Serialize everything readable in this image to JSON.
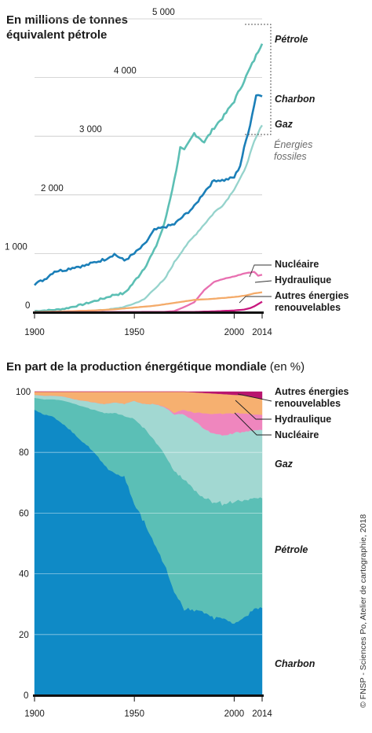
{
  "credit": "© FNSP - Sciences Po, Atelier de cartographie, 2018",
  "chart_data": [
    {
      "type": "line",
      "title": [
        "En millions de tonnes",
        "équivalent pétrole"
      ],
      "ylim": [
        0,
        5000
      ],
      "yticks": [
        "0",
        "1 000",
        "2 000",
        "3 000",
        "4 000",
        "5 000"
      ],
      "ytick_values": [
        0,
        1000,
        2000,
        3000,
        4000,
        5000
      ],
      "xlim": [
        1900,
        2014
      ],
      "xticks": [
        "1900",
        "1950",
        "2000",
        "2014"
      ],
      "xtick_values": [
        1900,
        1950,
        2000,
        2014
      ],
      "grid": true,
      "group_label": [
        "Énergies",
        "fossiles"
      ],
      "series": [
        {
          "name": "Pétrole",
          "color": "#5cbfb4",
          "x": [
            1900,
            1905,
            1910,
            1915,
            1920,
            1925,
            1930,
            1935,
            1940,
            1945,
            1950,
            1955,
            1960,
            1965,
            1970,
            1973,
            1975,
            1980,
            1985,
            1990,
            1995,
            2000,
            2005,
            2010,
            2014
          ],
          "y": [
            20,
            30,
            40,
            60,
            100,
            140,
            190,
            240,
            300,
            320,
            520,
            760,
            1050,
            1500,
            2250,
            2800,
            2750,
            3050,
            2900,
            3150,
            3350,
            3600,
            3950,
            4300,
            4600
          ]
        },
        {
          "name": "Charbon",
          "color": "#1b7fb8",
          "x": [
            1900,
            1905,
            1910,
            1915,
            1920,
            1925,
            1930,
            1935,
            1940,
            1945,
            1950,
            1955,
            1960,
            1965,
            1970,
            1975,
            1980,
            1985,
            1990,
            1995,
            2000,
            2003,
            2005,
            2008,
            2011,
            2014
          ],
          "y": [
            480,
            560,
            700,
            720,
            770,
            790,
            850,
            900,
            990,
            880,
            1000,
            1150,
            1400,
            1450,
            1500,
            1650,
            1800,
            2050,
            2250,
            2250,
            2300,
            2500,
            2800,
            3200,
            3700,
            3700
          ]
        },
        {
          "name": "Gaz",
          "color": "#95d3cc",
          "x": [
            1900,
            1905,
            1910,
            1915,
            1920,
            1925,
            1930,
            1935,
            1940,
            1945,
            1950,
            1955,
            1960,
            1965,
            1970,
            1975,
            1980,
            1985,
            1990,
            1995,
            2000,
            2005,
            2010,
            2014
          ],
          "y": [
            5,
            8,
            10,
            12,
            15,
            20,
            30,
            40,
            60,
            90,
            150,
            220,
            400,
            550,
            850,
            1100,
            1300,
            1500,
            1700,
            1850,
            2100,
            2400,
            2900,
            3200
          ]
        },
        {
          "name": "Nucléaire",
          "color": "#e86fb0",
          "x": [
            1900,
            1960,
            1965,
            1970,
            1975,
            1980,
            1985,
            1990,
            1995,
            2000,
            2005,
            2010,
            2011,
            2012,
            2014
          ],
          "y": [
            0,
            0,
            5,
            20,
            90,
            170,
            380,
            520,
            570,
            610,
            660,
            690,
            660,
            620,
            640
          ]
        },
        {
          "name": "Hydraulique",
          "color": "#f4ab6a",
          "x": [
            1900,
            1910,
            1920,
            1930,
            1940,
            1950,
            1960,
            1970,
            1980,
            1990,
            2000,
            2005,
            2010,
            2014
          ],
          "y": [
            5,
            10,
            20,
            30,
            50,
            80,
            110,
            160,
            210,
            230,
            260,
            280,
            320,
            340
          ]
        },
        {
          "name": "Autres énergies renouvelables",
          "color": "#c8187e",
          "x": [
            1900,
            1980,
            1990,
            2000,
            2005,
            2008,
            2010,
            2012,
            2014
          ],
          "y": [
            0,
            5,
            15,
            30,
            45,
            70,
            100,
            140,
            180
          ]
        }
      ],
      "labels": {
        "petrole": "Pétrole",
        "charbon": "Charbon",
        "gaz": "Gaz",
        "nucleaire": "Nucléaire",
        "hydraulique": "Hydraulique",
        "autres": [
          "Autres énergies",
          "renouvelables"
        ]
      }
    },
    {
      "type": "area",
      "title_bold": "En part de la production énergétique mondiale",
      "title_light": " (en %)",
      "stacked": true,
      "ylim": [
        0,
        100
      ],
      "yticks": [
        "0",
        "20",
        "40",
        "60",
        "80",
        "100"
      ],
      "ytick_values": [
        0,
        20,
        40,
        60,
        80,
        100
      ],
      "xlim": [
        1900,
        2014
      ],
      "xticks": [
        "1900",
        "1950",
        "2000",
        "2014"
      ],
      "xtick_values": [
        1900,
        1950,
        2000,
        2014
      ],
      "grid": true,
      "x": [
        1900,
        1905,
        1910,
        1915,
        1920,
        1925,
        1930,
        1935,
        1940,
        1945,
        1950,
        1955,
        1960,
        1965,
        1970,
        1975,
        1980,
        1985,
        1990,
        1995,
        2000,
        2005,
        2010,
        2014
      ],
      "series": [
        {
          "name": "Charbon",
          "color": "#0f8ac6",
          "values": [
            94,
            92.5,
            91.5,
            89,
            86,
            83,
            80,
            76,
            73,
            72,
            63,
            57,
            50,
            42,
            33,
            27,
            27,
            26,
            25,
            25,
            23,
            25,
            28,
            29
          ]
        },
        {
          "name": "Pétrole",
          "color": "#5bbfb6",
          "values": [
            4,
            5,
            6,
            8,
            10,
            12,
            14,
            17,
            20,
            20,
            28,
            31,
            34,
            36,
            38,
            40,
            38,
            37,
            37,
            37,
            40,
            38,
            36,
            36
          ]
        },
        {
          "name": "Gaz",
          "color": "#a2d8d2",
          "values": [
            1,
            1.2,
            1.2,
            1.4,
            1.5,
            2,
            2.5,
            3,
            3.5,
            4,
            6,
            8,
            12,
            15,
            18,
            20,
            22,
            22,
            22,
            22,
            22,
            22,
            22,
            22
          ]
        },
        {
          "name": "Nucléaire",
          "color": "#ef86be",
          "values": [
            0,
            0,
            0,
            0,
            0,
            0,
            0,
            0,
            0,
            0,
            0,
            0,
            0,
            0.2,
            0.5,
            1.5,
            2.6,
            5,
            6.5,
            7,
            6.4,
            6,
            5,
            5
          ]
        },
        {
          "name": "Hydraulique",
          "color": "#f6b070",
          "values": [
            1,
            1.3,
            1.3,
            1.6,
            2.5,
            3,
            3.5,
            4,
            3.5,
            4,
            3,
            4,
            4,
            4.8,
            6.5,
            5.5,
            6.4,
            6.5,
            6.5,
            6.3,
            5.9,
            5.8,
            5.5,
            5
          ]
        },
        {
          "name": "Autres énergies renouvelables",
          "color": "#b8156e",
          "values": [
            0,
            0,
            0,
            0,
            0,
            0,
            0,
            0,
            0,
            0,
            0,
            0,
            0,
            0,
            0,
            0,
            0.2,
            0.4,
            0.6,
            0.8,
            1,
            1.2,
            1.8,
            2.5
          ]
        }
      ],
      "labels": {
        "autres": [
          "Autres énergies",
          "renouvelables"
        ],
        "hydraulique": "Hydraulique",
        "nucleaire": "Nucléaire",
        "gaz": "Gaz",
        "petrole": "Pétrole",
        "charbon": "Charbon"
      }
    }
  ]
}
